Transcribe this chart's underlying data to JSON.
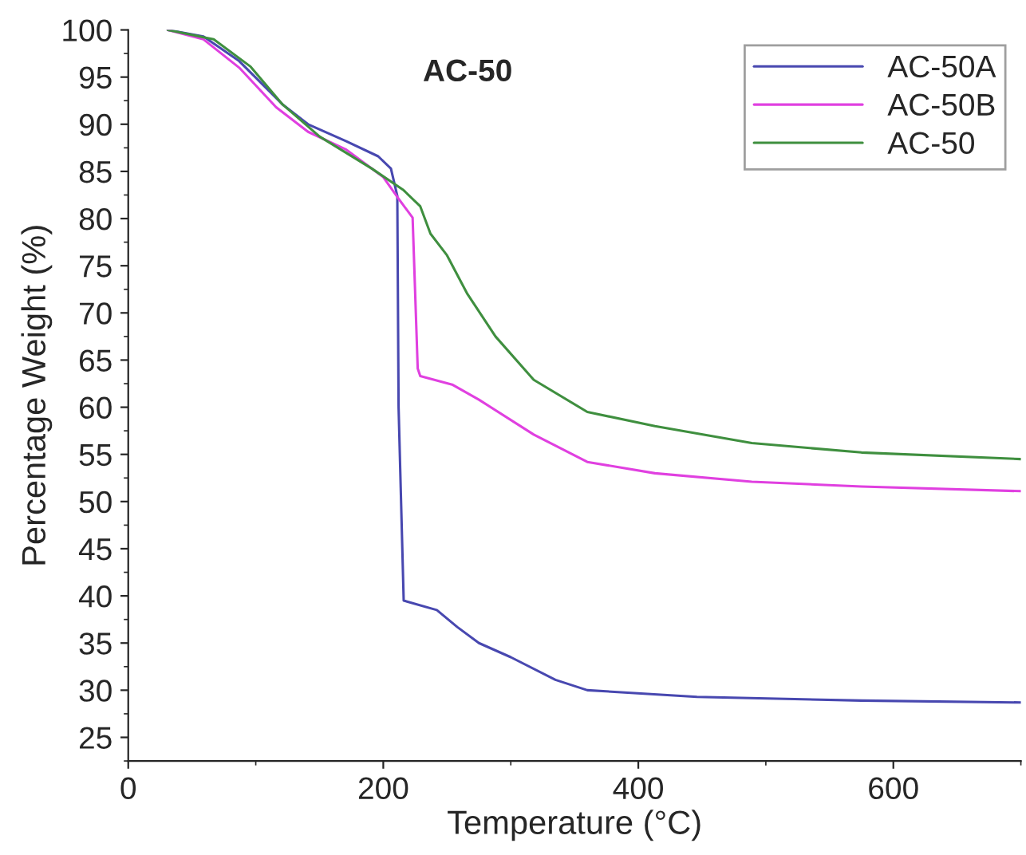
{
  "chart_data": {
    "type": "line",
    "title": "AC-50",
    "xlabel": "Temperature (°C)",
    "ylabel": "Percentage Weight (%)",
    "xlim": [
      0,
      700
    ],
    "xticks": [
      0,
      200,
      400,
      600
    ],
    "ylim": [
      22.5,
      100
    ],
    "yticks": [
      25,
      30,
      35,
      40,
      45,
      50,
      55,
      60,
      65,
      70,
      75,
      80,
      85,
      90,
      95,
      100
    ],
    "grid": false,
    "legend": "top right",
    "marker": "none",
    "line_style": "solid",
    "series": [
      {
        "name": "AC-50A",
        "color": "#4848b0",
        "x": [
          31,
          59,
          87,
          121,
          141,
          171,
          196,
          206,
          211,
          212,
          216,
          242,
          258,
          275,
          300,
          335,
          360,
          446,
          575,
          700
        ],
        "values": [
          100,
          99.3,
          96.7,
          92.1,
          90,
          88.2,
          86.6,
          85.3,
          82.4,
          60,
          39.5,
          38.5,
          36.7,
          35.0,
          33.5,
          31.1,
          30.0,
          29.3,
          28.9,
          28.7
        ]
      },
      {
        "name": "AC-50B",
        "color": "#e040e0",
        "x": [
          31,
          59,
          87,
          116,
          141,
          171,
          200,
          212,
          223,
          227,
          229,
          254,
          275,
          318,
          360,
          413,
          489,
          575,
          700
        ],
        "values": [
          100,
          99.0,
          96,
          91.8,
          89.2,
          87.3,
          84.4,
          82.1,
          80.1,
          64.1,
          63.3,
          62.4,
          60.8,
          57.1,
          54.2,
          53.0,
          52.1,
          51.6,
          51.1
        ]
      },
      {
        "name": "AC-50",
        "color": "#3f8f3f",
        "x": [
          31,
          67,
          96,
          121,
          150,
          191,
          216,
          229,
          237,
          250,
          266,
          288,
          318,
          360,
          413,
          489,
          575,
          700
        ],
        "values": [
          100,
          99.0,
          96.1,
          92.1,
          88.7,
          85.3,
          83.0,
          81.3,
          78.4,
          76.1,
          72.0,
          67.5,
          62.9,
          59.5,
          58.0,
          56.2,
          55.2,
          54.5
        ]
      }
    ]
  }
}
